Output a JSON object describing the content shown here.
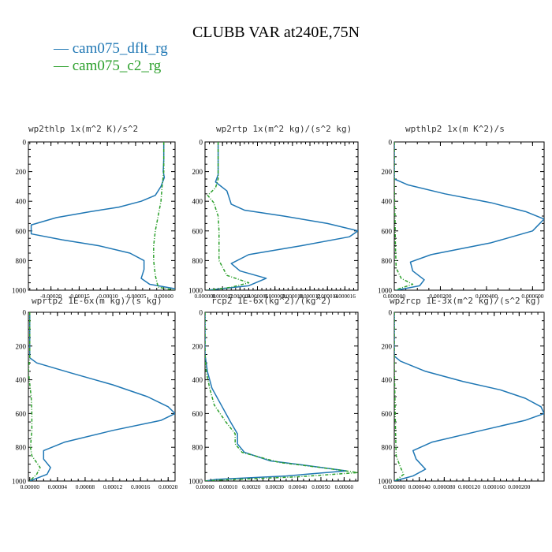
{
  "title": "CLUBB VAR at240E,75N",
  "legend": [
    {
      "label": "— cam075_dflt_rg",
      "color": "#1f77b4"
    },
    {
      "label": "— cam075_c2_rg",
      "color": "#2ca02c"
    }
  ],
  "chart_data": [
    {
      "type": "line",
      "title": "wp2thlp   1x(m^2 K)/s^2",
      "xlim": [
        -0.00024,
        2e-05
      ],
      "ylim": [
        0,
        1000
      ],
      "y_inverted": true,
      "xticks": [
        -0.0002,
        -0.00015,
        -0.0001,
        -5e-05,
        0.0
      ],
      "xtick_labels": [
        "-0.00020",
        "-0.00015",
        "-0.00010",
        "-0.00005",
        "0.00000"
      ],
      "yticks": [
        0,
        200,
        400,
        600,
        800,
        1000
      ],
      "series": [
        {
          "name": "cam075_dflt_rg",
          "points": [
            [
              0,
              0
            ],
            [
              0,
              120
            ],
            [
              -1e-06,
              200
            ],
            [
              1e-06,
              240
            ],
            [
              -5e-06,
              300
            ],
            [
              -1.5e-05,
              360
            ],
            [
              -4e-05,
              400
            ],
            [
              -8e-05,
              440
            ],
            [
              -0.00013,
              470
            ],
            [
              -0.00019,
              510
            ],
            [
              -0.000235,
              560
            ],
            [
              -0.000235,
              620
            ],
            [
              -0.00018,
              660
            ],
            [
              -0.000115,
              700
            ],
            [
              -6e-05,
              750
            ],
            [
              -3.5e-05,
              800
            ],
            [
              -3.5e-05,
              860
            ],
            [
              -4e-05,
              920
            ],
            [
              -2.5e-05,
              960
            ],
            [
              2e-05,
              990
            ]
          ]
        },
        {
          "name": "cam075_c2_rg",
          "points": [
            [
              0,
              0
            ],
            [
              0,
              200
            ],
            [
              -3e-06,
              300
            ],
            [
              -5e-06,
              400
            ],
            [
              -1e-05,
              500
            ],
            [
              -1.5e-05,
              600
            ],
            [
              -1.8e-05,
              700
            ],
            [
              -1.8e-05,
              800
            ],
            [
              -1.5e-05,
              900
            ],
            [
              -1e-05,
              980
            ],
            [
              2e-05,
              1000
            ]
          ]
        }
      ]
    },
    {
      "type": "line",
      "title": "wp2rtp   1x(m^2 kg)/(s^2 kg)",
      "xlim": [
        0,
        1.75e-05
      ],
      "ylim": [
        0,
        1000
      ],
      "y_inverted": true,
      "xticks": [
        0.0,
        2e-06,
        4e-06,
        6e-06,
        8e-06,
        1e-05,
        1.2e-05,
        1.4e-05,
        1.6e-05
      ],
      "xtick_labels": [
        "0.000000",
        "0.000002",
        "0.000004",
        "0.000006",
        "0.000008",
        "0.000010",
        "0.000012",
        "0.000014",
        "0.000016"
      ],
      "yticks": [
        0,
        200,
        400,
        600,
        800,
        1000
      ],
      "series": [
        {
          "name": "cam075_dflt_rg",
          "points": [
            [
              1.5e-06,
              0
            ],
            [
              1.5e-06,
              220
            ],
            [
              1.2e-06,
              270
            ],
            [
              2.5e-06,
              330
            ],
            [
              3e-06,
              420
            ],
            [
              4.5e-06,
              460
            ],
            [
              9e-06,
              500
            ],
            [
              1.4e-05,
              550
            ],
            [
              1.75e-05,
              600
            ],
            [
              1.65e-05,
              640
            ],
            [
              1.1e-05,
              700
            ],
            [
              5e-06,
              760
            ],
            [
              3e-06,
              820
            ],
            [
              4e-06,
              870
            ],
            [
              7e-06,
              920
            ],
            [
              5e-06,
              970
            ],
            [
              3e-07,
              1000
            ]
          ]
        },
        {
          "name": "cam075_c2_rg",
          "points": [
            [
              1.5e-06,
              0
            ],
            [
              1.5e-06,
              250
            ],
            [
              1.2e-06,
              310
            ],
            [
              3e-07,
              360
            ],
            [
              1e-06,
              410
            ],
            [
              1.5e-06,
              500
            ],
            [
              1.6e-06,
              600
            ],
            [
              1.6e-06,
              700
            ],
            [
              1.6e-06,
              800
            ],
            [
              2.5e-06,
              900
            ],
            [
              5e-06,
              950
            ],
            [
              3e-06,
              980
            ],
            [
              3e-07,
              1000
            ]
          ]
        }
      ]
    },
    {
      "type": "line",
      "title": "wpthlp2   1x(m K^2)/s",
      "xlim": [
        0,
        0.00065
      ],
      "ylim": [
        0,
        1000
      ],
      "y_inverted": true,
      "xticks": [
        0.0,
        0.0002,
        0.0004,
        0.0006
      ],
      "xtick_labels": [
        "0.000000",
        "0.000200",
        "0.000400",
        "0.000600"
      ],
      "yticks": [
        0,
        200,
        400,
        600,
        800,
        1000
      ],
      "series": [
        {
          "name": "cam075_dflt_rg",
          "points": [
            [
              0,
              0
            ],
            [
              0,
              250
            ],
            [
              6e-05,
              290
            ],
            [
              0.00022,
              350
            ],
            [
              0.00042,
              410
            ],
            [
              0.00057,
              470
            ],
            [
              0.00065,
              520
            ],
            [
              0.0006,
              600
            ],
            [
              0.00042,
              680
            ],
            [
              0.00016,
              760
            ],
            [
              7e-05,
              810
            ],
            [
              8e-05,
              870
            ],
            [
              0.00013,
              930
            ],
            [
              0.00011,
              970
            ],
            [
              1e-05,
              1000
            ]
          ]
        },
        {
          "name": "cam075_c2_rg",
          "points": [
            [
              0,
              0
            ],
            [
              0,
              300
            ],
            [
              3e-06,
              500
            ],
            [
              5e-06,
              700
            ],
            [
              8e-06,
              850
            ],
            [
              3e-05,
              920
            ],
            [
              8e-05,
              960
            ],
            [
              3e-05,
              985
            ],
            [
              5e-06,
              1000
            ]
          ]
        }
      ]
    },
    {
      "type": "line",
      "title": "wprtp2   1E-6x(m kg)/(s kg)",
      "xlim": [
        -2e-06,
        0.00021
      ],
      "ylim": [
        0,
        1000
      ],
      "y_inverted": true,
      "xticks": [
        0.0,
        4e-05,
        8e-05,
        0.00012,
        0.00016,
        0.0002
      ],
      "xtick_labels": [
        "0.00000",
        "0.00004",
        "0.00008",
        "0.00012",
        "0.00016",
        "0.00020"
      ],
      "yticks": [
        0,
        200,
        400,
        600,
        800,
        1000
      ],
      "series": [
        {
          "name": "cam075_dflt_rg",
          "points": [
            [
              0,
              0
            ],
            [
              0,
              270
            ],
            [
              1e-05,
              300
            ],
            [
              6e-05,
              360
            ],
            [
              0.00012,
              430
            ],
            [
              0.00017,
              500
            ],
            [
              0.0002,
              560
            ],
            [
              0.00021,
              600
            ],
            [
              0.00019,
              640
            ],
            [
              0.00012,
              700
            ],
            [
              5e-05,
              770
            ],
            [
              2e-05,
              820
            ],
            [
              2e-05,
              870
            ],
            [
              3e-05,
              920
            ],
            [
              2.5e-05,
              960
            ],
            [
              0,
              1000
            ]
          ]
        },
        {
          "name": "cam075_c2_rg",
          "points": [
            [
              0,
              0
            ],
            [
              0,
              270
            ],
            [
              -2e-06,
              350
            ],
            [
              2e-06,
              500
            ],
            [
              3e-06,
              600
            ],
            [
              3e-06,
              700
            ],
            [
              1e-06,
              800
            ],
            [
              3e-06,
              850
            ],
            [
              1.5e-05,
              920
            ],
            [
              1e-05,
              960
            ],
            [
              0,
              1000
            ]
          ]
        }
      ]
    },
    {
      "type": "line",
      "title": "rcp2   1E-6x(kg^2)/(kg^2)",
      "xlim": [
        0,
        0.00066
      ],
      "ylim": [
        0,
        1000
      ],
      "y_inverted": true,
      "xticks": [
        0.0,
        0.0001,
        0.0002,
        0.0003,
        0.0004,
        0.0005,
        0.0006
      ],
      "xtick_labels": [
        "0.00000",
        "0.00010",
        "0.00020",
        "0.00030",
        "0.00040",
        "0.00050",
        "0.00060"
      ],
      "yticks": [
        0,
        200,
        400,
        600,
        800,
        1000
      ],
      "series": [
        {
          "name": "cam075_dflt_rg",
          "points": [
            [
              0,
              0
            ],
            [
              0,
              250
            ],
            [
              1e-05,
              350
            ],
            [
              3e-05,
              450
            ],
            [
              7e-05,
              550
            ],
            [
              0.00011,
              650
            ],
            [
              0.00014,
              720
            ],
            [
              0.00014,
              780
            ],
            [
              0.00017,
              830
            ],
            [
              0.00028,
              880
            ],
            [
              0.00045,
              910
            ],
            [
              0.00061,
              940
            ],
            [
              0.00035,
              970
            ],
            [
              5e-05,
              990
            ],
            [
              0,
              1000
            ]
          ]
        },
        {
          "name": "cam075_c2_rg",
          "points": [
            [
              0,
              0
            ],
            [
              0,
              250
            ],
            [
              5e-06,
              350
            ],
            [
              2e-05,
              450
            ],
            [
              4e-05,
              550
            ],
            [
              9e-05,
              650
            ],
            [
              0.00013,
              720
            ],
            [
              0.00013,
              780
            ],
            [
              0.00016,
              830
            ],
            [
              0.00032,
              890
            ],
            [
              0.0005,
              920
            ],
            [
              0.00066,
              950
            ],
            [
              0.0004,
              975
            ],
            [
              5e-05,
              995
            ],
            [
              0,
              1000
            ]
          ]
        }
      ]
    },
    {
      "type": "line",
      "title": "wp2rcp   1E-3x(m^2 kg)/(s^2 kg)",
      "xlim": [
        0,
        0.00024
      ],
      "ylim": [
        0,
        1000
      ],
      "y_inverted": true,
      "xticks": [
        0.0,
        4e-05,
        8e-05,
        0.00012,
        0.00016,
        0.0002
      ],
      "xtick_labels": [
        "0.000000",
        "0.000040",
        "0.000080",
        "0.000120",
        "0.000160",
        "0.000200"
      ],
      "yticks": [
        0,
        200,
        400,
        600,
        800,
        1000
      ],
      "series": [
        {
          "name": "cam075_dflt_rg",
          "points": [
            [
              0,
              0
            ],
            [
              0,
              260
            ],
            [
              1e-05,
              290
            ],
            [
              5e-05,
              350
            ],
            [
              0.00011,
              410
            ],
            [
              0.00017,
              460
            ],
            [
              0.00021,
              510
            ],
            [
              0.000235,
              560
            ],
            [
              0.00024,
              600
            ],
            [
              0.00021,
              640
            ],
            [
              0.00014,
              700
            ],
            [
              6e-05,
              770
            ],
            [
              3e-05,
              820
            ],
            [
              3.5e-05,
              870
            ],
            [
              5e-05,
              930
            ],
            [
              3e-05,
              970
            ],
            [
              0,
              1000
            ]
          ]
        },
        {
          "name": "cam075_c2_rg",
          "points": [
            [
              0,
              0
            ],
            [
              0,
              300
            ],
            [
              1e-06,
              500
            ],
            [
              2e-06,
              700
            ],
            [
              3e-06,
              850
            ],
            [
              1e-05,
              920
            ],
            [
              1.5e-05,
              960
            ],
            [
              5e-06,
              990
            ],
            [
              0,
              1000
            ]
          ]
        }
      ]
    }
  ]
}
